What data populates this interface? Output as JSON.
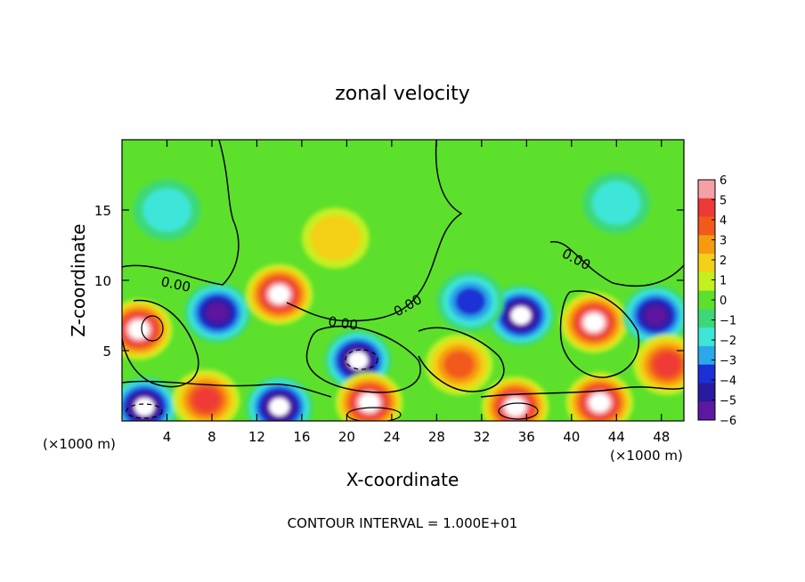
{
  "chart_data": {
    "type": "heatmap",
    "title": "zonal velocity",
    "xlabel": "X-coordinate",
    "ylabel": "Z-coordinate",
    "x_units_left": "(×1000 m)",
    "x_units_right": "(×1000 m)",
    "footer": "CONTOUR INTERVAL = 1.000E+01",
    "xlim": [
      0,
      50
    ],
    "ylim": [
      0,
      20
    ],
    "x_ticks": [
      4,
      8,
      12,
      16,
      20,
      24,
      28,
      32,
      36,
      40,
      44,
      48
    ],
    "x_tick_labels": [
      "4",
      "8",
      "12",
      "16",
      "20",
      "24",
      "28",
      "32",
      "36",
      "40",
      "44",
      "48"
    ],
    "y_ticks": [
      5,
      10,
      15
    ],
    "y_tick_labels": [
      "5",
      "10",
      "15"
    ],
    "colorbar": {
      "min": -6,
      "max": 6,
      "ticks": [
        6,
        5,
        4,
        3,
        2,
        1,
        0,
        -1,
        -2,
        -3,
        -4,
        -5,
        -6
      ],
      "tick_labels": [
        "6",
        "5",
        "4",
        "3",
        "2",
        "1",
        "0",
        "−1",
        "−2",
        "−3",
        "−4",
        "−5",
        "−6"
      ],
      "colors": [
        "#f4a0a6",
        "#ee3a36",
        "#f25a1c",
        "#f79a10",
        "#f4d018",
        "#c4f020",
        "#5ce02c",
        "#3cd877",
        "#3ee6d8",
        "#2aa8ea",
        "#1a30d4",
        "#2a1aa0",
        "#5c18a0"
      ]
    },
    "contour_labels": [
      "0.00",
      "0.00",
      "0.00",
      "0.00"
    ],
    "background_value": 0,
    "anomalies": [
      {
        "x": 1.5,
        "z": 6.5,
        "value": 10
      },
      {
        "x": 8.5,
        "z": 7.7,
        "value": -6
      },
      {
        "x": 14.0,
        "z": 9.0,
        "value": 10
      },
      {
        "x": 19.0,
        "z": 13.0,
        "value": 2.5
      },
      {
        "x": 21.0,
        "z": 4.3,
        "value": -10
      },
      {
        "x": 35.5,
        "z": 7.5,
        "value": -10
      },
      {
        "x": 42.0,
        "z": 7.0,
        "value": 10
      },
      {
        "x": 47.5,
        "z": 7.5,
        "value": -6
      },
      {
        "x": 30.0,
        "z": 4.0,
        "value": 4
      },
      {
        "x": 48.5,
        "z": 4.0,
        "value": 5
      },
      {
        "x": 2.0,
        "z": 1.0,
        "value": -10
      },
      {
        "x": 14.0,
        "z": 1.0,
        "value": -10
      },
      {
        "x": 22.0,
        "z": 1.3,
        "value": 10
      },
      {
        "x": 35.0,
        "z": 1.0,
        "value": 10
      },
      {
        "x": 42.5,
        "z": 1.3,
        "value": 10
      },
      {
        "x": 7.5,
        "z": 1.5,
        "value": 5
      },
      {
        "x": 31.0,
        "z": 8.5,
        "value": -4
      },
      {
        "x": 4.0,
        "z": 15.0,
        "value": -2
      },
      {
        "x": 44.0,
        "z": 15.5,
        "value": -2
      }
    ]
  }
}
